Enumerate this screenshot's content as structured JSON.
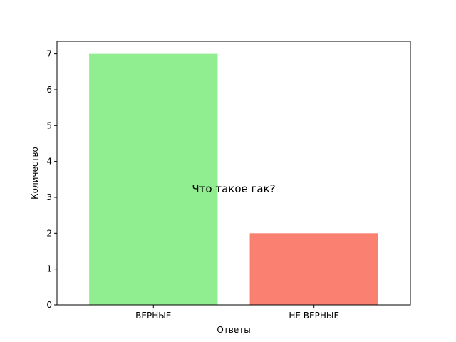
{
  "chart_data": {
    "type": "bar",
    "categories": [
      "ВЕРНЫЕ",
      "НЕ ВЕРНЫЕ"
    ],
    "values": [
      7,
      2
    ],
    "colors": [
      "#90ee90",
      "#fa8072"
    ],
    "title": "",
    "xlabel": "Ответы",
    "ylabel": "Количество",
    "ylim": [
      0,
      7.35
    ],
    "yticks": [
      0,
      1,
      2,
      3,
      4,
      5,
      6,
      7
    ],
    "annotation": "Что такое гак?",
    "grid": false,
    "legend": "none"
  }
}
